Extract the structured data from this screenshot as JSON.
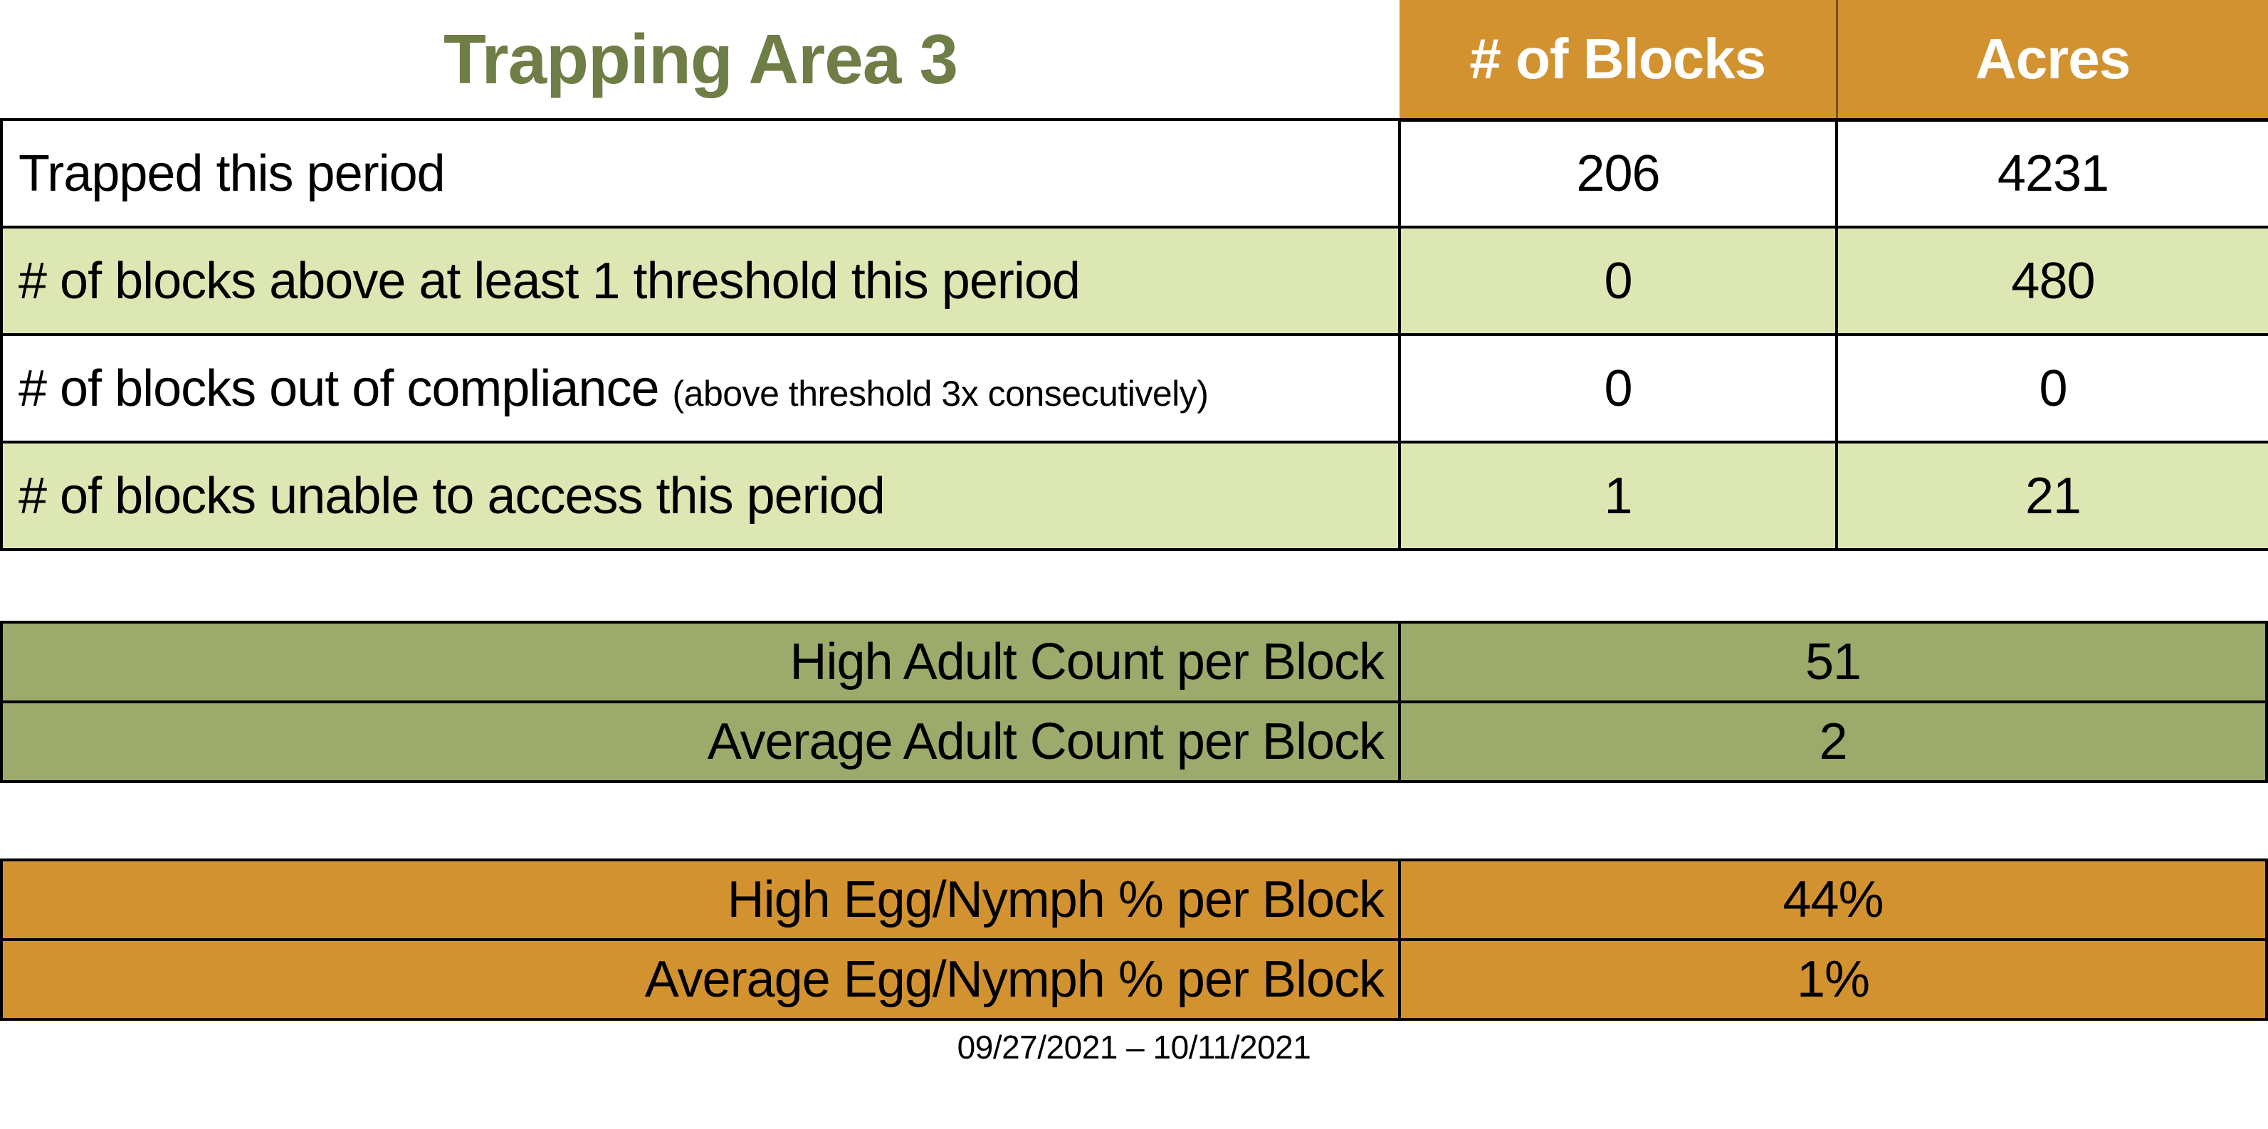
{
  "title": "Trapping Area 3",
  "colors": {
    "orange": "#D2922F",
    "light_green": "#DDE7B3",
    "olive": "#9CAA6B",
    "title_green": "#6F7D46",
    "border": "#000000",
    "header_text": "#FFFFFF",
    "body_text": "#000000"
  },
  "main_table": {
    "columns": [
      "# of Blocks",
      "Acres"
    ],
    "rows": [
      {
        "label": "Trapped this period",
        "note": "",
        "blocks": "206",
        "acres": "4231"
      },
      {
        "label": "# of blocks above at least 1 threshold this period",
        "note": "",
        "blocks": "0",
        "acres": "480"
      },
      {
        "label": "# of blocks out of compliance",
        "note": "(above threshold 3x consecutively)",
        "blocks": "0",
        "acres": "0"
      },
      {
        "label": "# of blocks unable to access this period",
        "note": "",
        "blocks": "1",
        "acres": "21"
      }
    ]
  },
  "adult_table": {
    "rows": [
      {
        "label": "High Adult Count per Block",
        "value": "51"
      },
      {
        "label": "Average Adult Count per Block",
        "value": "2"
      }
    ]
  },
  "egg_table": {
    "rows": [
      {
        "label": "High Egg/Nymph % per Block",
        "value": "44%"
      },
      {
        "label": "Average Egg/Nymph % per Block",
        "value": "1%"
      }
    ]
  },
  "footer": {
    "date_range": "09/27/2021 – 10/11/2021"
  }
}
